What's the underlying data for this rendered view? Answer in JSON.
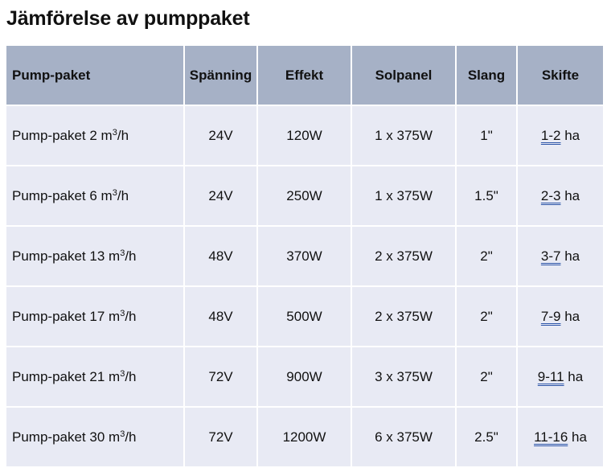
{
  "title": "Jämförelse av pumppaket",
  "table": {
    "headers": [
      "Pump-paket",
      "Spänning",
      "Effekt",
      "Solpanel",
      "Slang",
      "Skifte"
    ],
    "rows": [
      {
        "name": "Pump-paket 2 m",
        "sup": "3",
        "unit": "/h",
        "voltage": "24V",
        "power": "120W",
        "panel": "1 x 375W",
        "hose": "1\"",
        "range": "1-2",
        "range_unit": " ha"
      },
      {
        "name": "Pump-paket 6 m",
        "sup": "3",
        "unit": "/h",
        "voltage": "24V",
        "power": "250W",
        "panel": "1 x 375W",
        "hose": "1.5\"",
        "range": "2-3",
        "range_unit": " ha"
      },
      {
        "name": "Pump-paket 13 m",
        "sup": "3",
        "unit": "/h",
        "voltage": "48V",
        "power": "370W",
        "panel": "2 x 375W",
        "hose": "2\"",
        "range": "3-7",
        "range_unit": " ha"
      },
      {
        "name": "Pump-paket 17 m",
        "sup": "3",
        "unit": "/h",
        "voltage": "48V",
        "power": "500W",
        "panel": "2 x 375W",
        "hose": "2\"",
        "range": "7-9",
        "range_unit": " ha"
      },
      {
        "name": "Pump-paket 21 m",
        "sup": "3",
        "unit": "/h",
        "voltage": "72V",
        "power": "900W",
        "panel": "3 x 375W",
        "hose": "2\"",
        "range": "9-11",
        "range_unit": " ha"
      },
      {
        "name": "Pump-paket 30 m",
        "sup": "3",
        "unit": "/h",
        "voltage": "72V",
        "power": "1200W",
        "panel": "6 x 375W",
        "hose": "2.5\"",
        "range": "11-16",
        "range_unit": " ha"
      }
    ]
  }
}
